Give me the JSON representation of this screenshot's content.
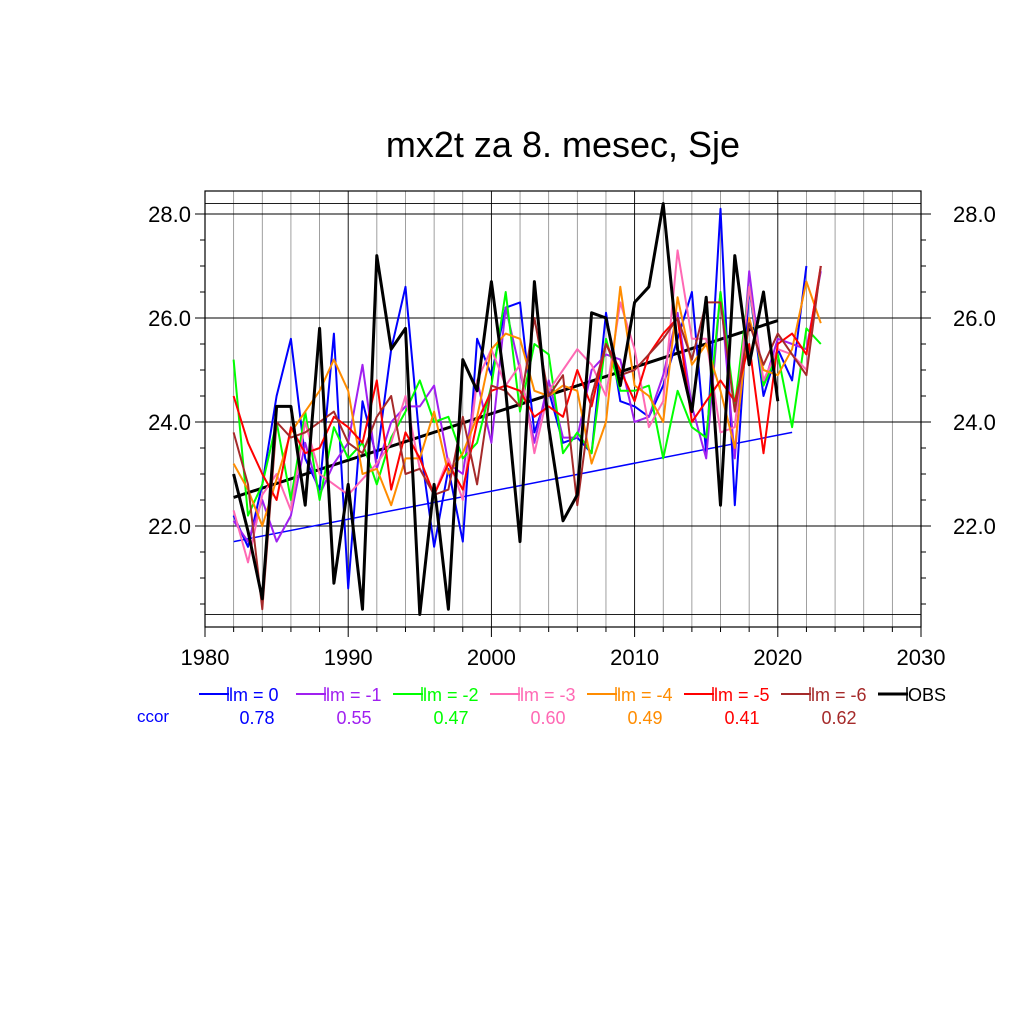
{
  "chart_data": {
    "type": "line",
    "title": "mx2t za 8. mesec, Sje",
    "xlabel": "",
    "ylabel": "",
    "xlim": [
      1980,
      2030
    ],
    "ylim": [
      20.3,
      28.2
    ],
    "x_ticks": [
      "1980",
      "1990",
      "2000",
      "2010",
      "2020",
      "2030"
    ],
    "y_ticks": [
      "22.0",
      "24.0",
      "26.0",
      "28.0"
    ],
    "grid": true,
    "ccor_label": "ccor",
    "series": [
      {
        "name": "lm = 0",
        "color": "#0000ff",
        "ccor": "0.78",
        "x_start": 1982,
        "values": [
          22.2,
          21.6,
          22.8,
          24.5,
          25.6,
          23.3,
          22.7,
          25.7,
          20.8,
          24.4,
          23.3,
          25.4,
          26.6,
          23.6,
          21.6,
          23.1,
          21.7,
          25.6,
          24.9,
          26.2,
          26.3,
          23.8,
          24.6,
          23.6,
          23.7,
          23.4,
          26.1,
          24.4,
          24.3,
          24.1,
          24.7,
          25.6,
          26.5,
          23.4,
          28.1,
          22.4,
          26.6,
          24.5,
          25.4,
          24.8,
          27.0
        ]
      },
      {
        "name": "lm = -1",
        "color": "#a020f0",
        "ccor": "0.55",
        "x_start": 1982,
        "values": [
          22.1,
          21.7,
          22.5,
          21.7,
          22.2,
          23.6,
          22.6,
          23.2,
          23.6,
          25.1,
          23.1,
          24.0,
          24.3,
          24.3,
          24.7,
          23.2,
          23.0,
          24.8,
          23.6,
          26.2,
          25.0,
          23.6,
          24.8,
          23.7,
          23.7,
          25.0,
          25.3,
          25.2,
          24.0,
          24.1,
          24.9,
          26.1,
          24.3,
          23.3,
          26.5,
          23.3,
          26.9,
          24.7,
          25.6,
          25.5,
          25.4,
          26.9
        ]
      },
      {
        "name": "lm = -2",
        "color": "#00ff00",
        "ccor": "0.47",
        "x_start": 1982,
        "values": [
          25.2,
          22.2,
          22.8,
          24.0,
          22.5,
          24.2,
          22.5,
          23.9,
          23.3,
          23.6,
          22.8,
          23.7,
          24.2,
          24.8,
          24.0,
          24.1,
          23.3,
          23.6,
          24.7,
          26.5,
          24.2,
          25.5,
          25.3,
          23.4,
          23.8,
          23.4,
          25.6,
          24.6,
          24.6,
          24.7,
          23.3,
          24.6,
          23.9,
          23.7,
          26.5,
          24.3,
          26.6,
          24.7,
          25.3,
          23.9,
          25.8,
          25.5
        ]
      },
      {
        "name": "lm = -3",
        "color": "#ff69b4",
        "ccor": "0.60",
        "x_start": 1982,
        "values": [
          22.3,
          21.3,
          22.6,
          23.0,
          22.3,
          24.0,
          23.0,
          22.8,
          22.6,
          22.9,
          23.2,
          23.6,
          24.5,
          23.1,
          22.6,
          23.3,
          22.5,
          24.8,
          25.4,
          24.7,
          25.1,
          23.4,
          24.6,
          25.0,
          25.4,
          25.1,
          24.5,
          26.3,
          25.4,
          23.9,
          24.4,
          27.3,
          25.6,
          25.6,
          23.8,
          23.9,
          26.6,
          24.8,
          25.4,
          25.3,
          25.0,
          27.0
        ]
      },
      {
        "name": "lm = -4",
        "color": "#ff8c00",
        "ccor": "0.49",
        "x_start": 1982,
        "values": [
          23.2,
          22.7,
          22.0,
          22.9,
          23.8,
          24.2,
          24.6,
          25.2,
          24.6,
          23.0,
          23.1,
          22.4,
          23.3,
          23.3,
          24.2,
          23.0,
          23.4,
          24.1,
          25.4,
          25.7,
          25.6,
          24.6,
          24.5,
          24.7,
          24.6,
          23.2,
          24.0,
          26.6,
          24.7,
          24.5,
          24.0,
          26.4,
          25.1,
          25.5,
          24.6,
          23.5,
          26.0,
          25.0,
          24.9,
          25.4,
          26.7,
          25.9
        ]
      },
      {
        "name": "lm = -5",
        "color": "#ff0000",
        "ccor": "0.41",
        "x_start": 1982,
        "values": [
          24.5,
          23.6,
          23.0,
          22.5,
          23.9,
          23.4,
          23.5,
          24.1,
          23.9,
          23.6,
          24.8,
          22.7,
          23.8,
          23.3,
          22.6,
          23.2,
          22.7,
          24.0,
          24.6,
          24.7,
          24.6,
          24.1,
          24.3,
          24.1,
          25.0,
          24.3,
          25.5,
          25.0,
          24.4,
          25.3,
          25.7,
          26.0,
          24.0,
          24.4,
          24.8,
          24.4,
          25.5,
          23.4,
          25.5,
          25.7,
          25.3,
          27.0
        ]
      },
      {
        "name": "lm = -6",
        "color": "#a52a2a",
        "ccor": "0.62",
        "x_start": 1982,
        "values": [
          23.8,
          22.8,
          20.4,
          24.0,
          23.7,
          23.8,
          24.0,
          24.2,
          23.6,
          23.4,
          24.1,
          24.5,
          23.0,
          23.1,
          22.6,
          22.7,
          24.1,
          22.8,
          24.7,
          24.6,
          24.3,
          26.0,
          24.5,
          24.9,
          22.4,
          24.5,
          25.5,
          24.9,
          25.0,
          25.3,
          25.6,
          26.0,
          25.2,
          26.3,
          26.3,
          24.2,
          25.9,
          25.1,
          25.7,
          25.3,
          24.9,
          27.0
        ]
      },
      {
        "name": "OBS",
        "color": "#000000",
        "ccor": "",
        "x_start": 1982,
        "values": [
          23.0,
          21.9,
          20.6,
          24.3,
          24.3,
          22.4,
          25.8,
          20.9,
          22.8,
          20.4,
          27.2,
          25.4,
          25.8,
          20.3,
          22.8,
          20.4,
          25.2,
          24.6,
          26.7,
          24.6,
          21.7,
          26.7,
          23.9,
          22.1,
          22.6,
          26.1,
          26.0,
          24.7,
          26.3,
          26.6,
          28.2,
          25.4,
          24.2,
          26.4,
          22.4,
          27.2,
          25.1,
          26.5,
          24.4
        ]
      }
    ],
    "trend_lines": [
      {
        "color": "#0000ff",
        "x": [
          1982,
          2021
        ],
        "y": [
          21.7,
          23.8
        ]
      },
      {
        "color": "#000000",
        "x": [
          1982,
          2020
        ],
        "y": [
          22.55,
          25.95
        ]
      }
    ]
  }
}
